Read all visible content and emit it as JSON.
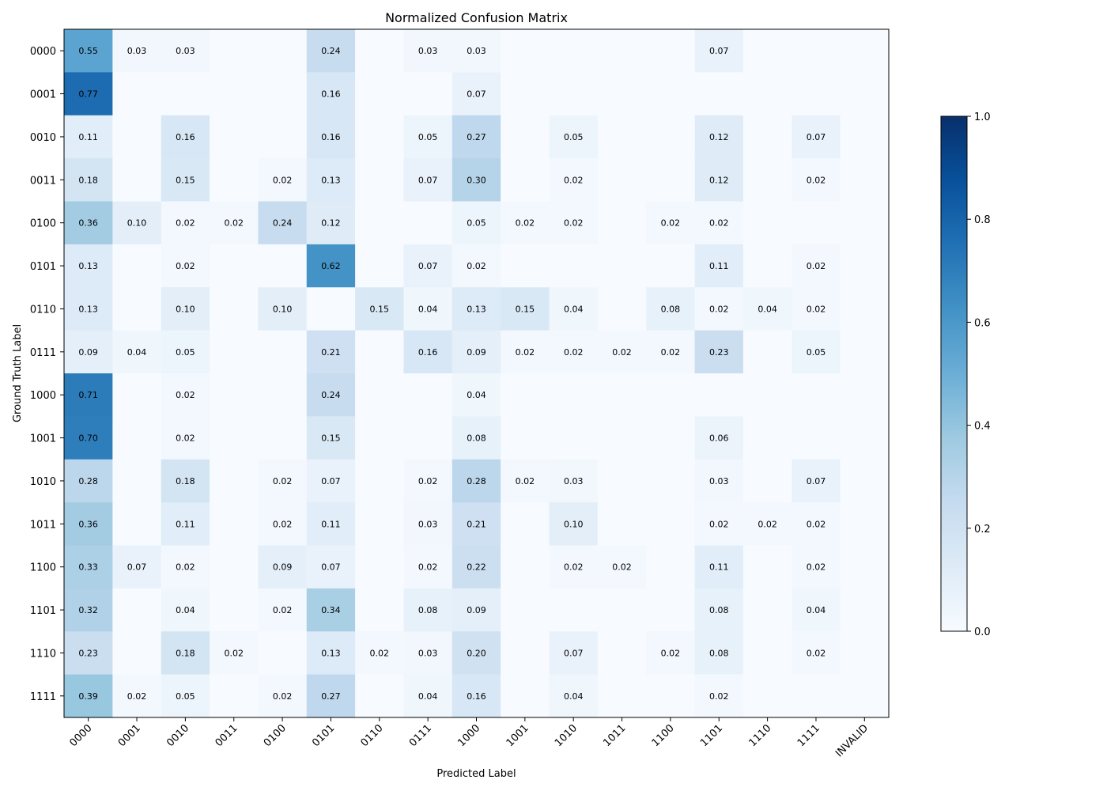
{
  "chart_data": {
    "type": "heatmap",
    "title": "Normalized Confusion Matrix",
    "xlabel": "Predicted Label",
    "ylabel": "Ground Truth Label",
    "x_categories": [
      "0000",
      "0001",
      "0010",
      "0011",
      "0100",
      "0101",
      "0110",
      "0111",
      "1000",
      "1001",
      "1010",
      "1011",
      "1100",
      "1101",
      "1110",
      "1111",
      "INVALID"
    ],
    "y_categories": [
      "0000",
      "0001",
      "0010",
      "0011",
      "0100",
      "0101",
      "0110",
      "0111",
      "1000",
      "1001",
      "1010",
      "1011",
      "1100",
      "1101",
      "1110",
      "1111"
    ],
    "values": [
      [
        0.55,
        0.03,
        0.03,
        0,
        0,
        0.24,
        0,
        0.03,
        0.03,
        0,
        0,
        0,
        0,
        0.07,
        0,
        0,
        0
      ],
      [
        0.77,
        0,
        0,
        0,
        0,
        0.16,
        0,
        0,
        0.07,
        0,
        0,
        0,
        0,
        0,
        0,
        0,
        0
      ],
      [
        0.11,
        0,
        0.16,
        0,
        0,
        0.16,
        0,
        0.05,
        0.27,
        0,
        0.05,
        0,
        0,
        0.12,
        0,
        0.07,
        0
      ],
      [
        0.18,
        0,
        0.15,
        0,
        0.02,
        0.13,
        0,
        0.07,
        0.3,
        0,
        0.02,
        0,
        0,
        0.12,
        0,
        0.02,
        0
      ],
      [
        0.36,
        0.1,
        0.02,
        0.02,
        0.24,
        0.12,
        0,
        0,
        0.05,
        0.02,
        0.02,
        0,
        0.02,
        0.02,
        0,
        0,
        0
      ],
      [
        0.13,
        0,
        0.02,
        0,
        0,
        0.62,
        0,
        0.07,
        0.02,
        0,
        0,
        0,
        0,
        0.11,
        0,
        0.02,
        0
      ],
      [
        0.13,
        0,
        0.1,
        0,
        0.1,
        0,
        0.15,
        0.04,
        0.13,
        0.15,
        0.04,
        0,
        0.08,
        0.02,
        0.04,
        0.02,
        0
      ],
      [
        0.09,
        0.04,
        0.05,
        0,
        0,
        0.21,
        0,
        0.16,
        0.09,
        0.02,
        0.02,
        0.02,
        0.02,
        0.23,
        0,
        0.05,
        0
      ],
      [
        0.71,
        0,
        0.02,
        0,
        0,
        0.24,
        0,
        0,
        0.04,
        0,
        0,
        0,
        0,
        0,
        0,
        0,
        0
      ],
      [
        0.7,
        0,
        0.02,
        0,
        0,
        0.15,
        0,
        0,
        0.08,
        0,
        0,
        0,
        0,
        0.06,
        0,
        0,
        0
      ],
      [
        0.28,
        0,
        0.18,
        0,
        0.02,
        0.07,
        0,
        0.02,
        0.28,
        0.02,
        0.03,
        0,
        0,
        0.03,
        0,
        0.07,
        0
      ],
      [
        0.36,
        0,
        0.11,
        0,
        0.02,
        0.11,
        0,
        0.03,
        0.21,
        0,
        0.1,
        0,
        0,
        0.02,
        0.02,
        0.02,
        0
      ],
      [
        0.33,
        0.07,
        0.02,
        0,
        0.09,
        0.07,
        0,
        0.02,
        0.22,
        0,
        0.02,
        0.02,
        0,
        0.11,
        0,
        0.02,
        0
      ],
      [
        0.32,
        0,
        0.04,
        0,
        0.02,
        0.34,
        0,
        0.08,
        0.09,
        0,
        0,
        0,
        0,
        0.08,
        0,
        0.04,
        0
      ],
      [
        0.23,
        0,
        0.18,
        0.02,
        0,
        0.13,
        0.02,
        0.03,
        0.2,
        0,
        0.07,
        0,
        0.02,
        0.08,
        0,
        0.02,
        0
      ],
      [
        0.39,
        0.02,
        0.05,
        0,
        0.02,
        0.27,
        0,
        0.04,
        0.16,
        0,
        0.04,
        0,
        0,
        0.02,
        0,
        0,
        0
      ]
    ],
    "value_range": [
      0,
      1
    ],
    "colormap": "Blues",
    "colorbar_ticks": [
      "0.0",
      "0.2",
      "0.4",
      "0.6",
      "0.8",
      "1.0"
    ],
    "label_format": "two-decimals, hidden when zero"
  }
}
